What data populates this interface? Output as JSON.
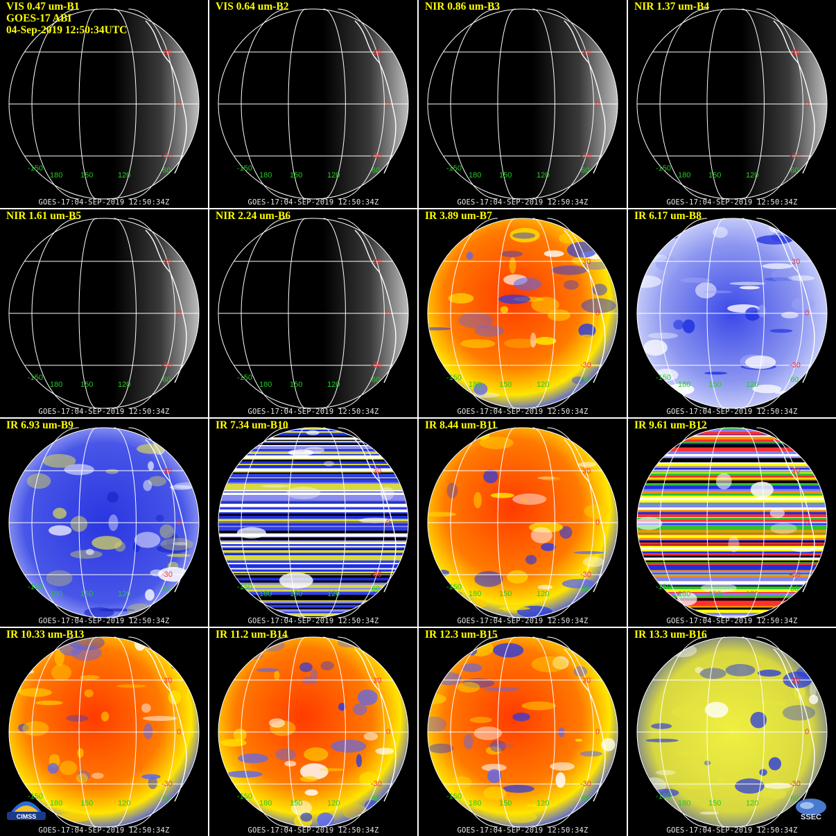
{
  "header": {
    "satellite_line": "GOES-17 ABI",
    "date_line": "04-Sep-2019 12:50:34UTC"
  },
  "footer_text": "GOES-17:04-SEP-2019  12:50:34Z",
  "grid_labels": {
    "lat_north": "30",
    "lat_equator": "0",
    "lat_south": "-30",
    "lon_labels": [
      "-150",
      "180",
      "150",
      "120",
      "60"
    ],
    "lat_colors": {
      "lat": "#ff3030",
      "lon": "#22cc22"
    }
  },
  "panels": [
    {
      "title": "VIS 0.47 um-B1",
      "style": "vis"
    },
    {
      "title": "VIS 0.64 um-B2",
      "style": "vis"
    },
    {
      "title": "NIR 0.86 um-B3",
      "style": "vis"
    },
    {
      "title": "NIR 1.37 um-B4",
      "style": "vis"
    },
    {
      "title": "NIR 1.61 um-B5",
      "style": "vis"
    },
    {
      "title": "NIR 2.24 um-B6",
      "style": "vis"
    },
    {
      "title": "IR 3.89 um-B7",
      "style": "ir-red"
    },
    {
      "title": "IR 6.17 um-B8",
      "style": "wv-light"
    },
    {
      "title": "IR 6.93 um-B9",
      "style": "wv-blue"
    },
    {
      "title": "IR 7.34 um-B10",
      "style": "striped-blue"
    },
    {
      "title": "IR 8.44 um-B11",
      "style": "ir-red"
    },
    {
      "title": "IR 9.61 um-B12",
      "style": "striped-multi"
    },
    {
      "title": "IR 10.33 um-B13",
      "style": "ir-red"
    },
    {
      "title": "IR 11.2 um-B14",
      "style": "ir-red"
    },
    {
      "title": "IR 12.3 um-B15",
      "style": "ir-red"
    },
    {
      "title": "IR 13.3 um-B16",
      "style": "ir-yellow"
    }
  ],
  "logos": {
    "left": "CIMSS",
    "right": "SSEC"
  },
  "colors": {
    "title": "#ffff00",
    "ir_red": "#ff3b00",
    "ir_yellow": "#ffe600",
    "cloud_blue": "#1e2ee0",
    "wv_white": "#e8ecff"
  }
}
